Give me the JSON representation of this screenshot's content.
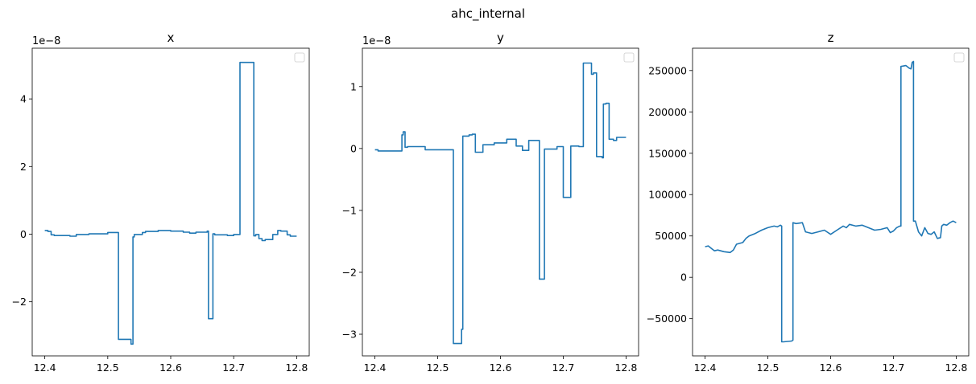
{
  "figure": {
    "suptitle": "ahc_internal"
  },
  "chart_data": [
    {
      "type": "line",
      "title": "x",
      "xlabel": "",
      "ylabel": "",
      "offset_text": "1e−8",
      "xlim": [
        12.38,
        12.82
      ],
      "ylim": [
        -3.6e-08,
        5.5e-08
      ],
      "xticks": [
        12.4,
        12.5,
        12.6,
        12.7,
        12.8
      ],
      "xticklabels": [
        "12.4",
        "12.5",
        "12.6",
        "12.7",
        "12.8"
      ],
      "yticks": [
        -2e-08,
        0,
        2e-08,
        4e-08
      ],
      "yticklabels": [
        "−2",
        "0",
        "2",
        "4"
      ],
      "legend": "upper right, empty",
      "color": "#1f77b4",
      "series": [
        {
          "x": [
            12.4,
            12.405,
            12.405,
            12.41,
            12.41,
            12.415,
            12.415,
            12.44,
            12.44,
            12.45,
            12.45,
            12.47,
            12.47,
            12.5,
            12.5,
            12.517,
            12.517,
            12.523,
            12.523,
            12.537,
            12.537,
            12.54,
            12.54,
            12.542,
            12.542,
            12.555,
            12.555,
            12.56,
            12.56,
            12.58,
            12.58,
            12.6,
            12.6,
            12.62,
            12.62,
            12.63,
            12.63,
            12.64,
            12.64,
            12.658,
            12.658,
            12.66,
            12.66,
            12.667,
            12.667,
            12.67,
            12.67,
            12.69,
            12.69,
            12.7,
            12.7,
            12.71,
            12.71,
            12.712,
            12.712,
            12.732,
            12.732,
            12.735,
            12.735,
            12.74,
            12.74,
            12.745,
            12.745,
            12.75,
            12.75,
            12.762,
            12.762,
            12.77,
            12.77,
            12.775,
            12.775,
            12.785,
            12.785,
            12.79,
            12.79,
            12.8
          ],
          "y": [
            1.1e-09,
            1.1e-09,
            8e-10,
            8e-10,
            -2e-10,
            -2e-10,
            -4e-10,
            -4e-10,
            -6e-10,
            -6e-10,
            -1e-10,
            -1e-10,
            1e-10,
            1e-10,
            5e-10,
            5e-10,
            -3.11e-08,
            -3.11e-08,
            -3.11e-08,
            -3.11e-08,
            -3.25e-08,
            -3.25e-08,
            -8e-10,
            -8e-10,
            -1e-10,
            -1e-10,
            5e-10,
            5e-10,
            8e-10,
            8e-10,
            1.1e-09,
            1.1e-09,
            9e-10,
            9e-10,
            6e-10,
            6e-10,
            3e-10,
            3e-10,
            6e-10,
            6e-10,
            9e-10,
            9e-10,
            -2.5e-08,
            -2.5e-08,
            1e-10,
            1e-10,
            -2e-10,
            -2e-10,
            -4e-10,
            -4e-10,
            -1e-10,
            -1e-10,
            5.08e-08,
            5.08e-08,
            5.08e-08,
            5.08e-08,
            -5e-10,
            -5e-10,
            -1e-10,
            -1e-10,
            -1.3e-09,
            -1.3e-09,
            -1.9e-09,
            -1.9e-09,
            -1.6e-09,
            -1.6e-09,
            -1e-10,
            -1e-10,
            1.1e-09,
            1.1e-09,
            9e-10,
            9e-10,
            -2e-10,
            -2e-10,
            -6e-10,
            -6e-10
          ]
        }
      ]
    },
    {
      "type": "line",
      "title": "y",
      "xlabel": "",
      "ylabel": "",
      "offset_text": "1e−8",
      "xlim": [
        12.38,
        12.82
      ],
      "ylim": [
        -3.35e-08,
        1.62e-08
      ],
      "xticks": [
        12.4,
        12.5,
        12.6,
        12.7,
        12.8
      ],
      "xticklabels": [
        "12.4",
        "12.5",
        "12.6",
        "12.7",
        "12.8"
      ],
      "yticks": [
        -3e-08,
        -2e-08,
        -1e-08,
        0,
        1e-08
      ],
      "yticklabels": [
        "−3",
        "−2",
        "−1",
        "0",
        "1"
      ],
      "legend": "upper right, empty",
      "color": "#1f77b4",
      "series": [
        {
          "x": [
            12.4,
            12.405,
            12.405,
            12.443,
            12.443,
            12.445,
            12.445,
            12.448,
            12.448,
            12.452,
            12.452,
            12.48,
            12.48,
            12.5,
            12.5,
            12.525,
            12.525,
            12.53,
            12.53,
            12.535,
            12.535,
            12.538,
            12.538,
            12.54,
            12.54,
            12.55,
            12.55,
            12.555,
            12.555,
            12.56,
            12.56,
            12.572,
            12.572,
            12.59,
            12.59,
            12.61,
            12.61,
            12.625,
            12.625,
            12.635,
            12.635,
            12.645,
            12.645,
            12.662,
            12.662,
            12.667,
            12.667,
            12.67,
            12.67,
            12.68,
            12.68,
            12.69,
            12.69,
            12.7,
            12.7,
            12.71,
            12.71,
            12.712,
            12.712,
            12.725,
            12.725,
            12.732,
            12.732,
            12.745,
            12.745,
            12.748,
            12.748,
            12.75,
            12.75,
            12.753,
            12.753,
            12.762,
            12.762,
            12.764,
            12.764,
            12.768,
            12.768,
            12.773,
            12.773,
            12.78,
            12.78,
            12.785,
            12.785,
            12.795,
            12.795,
            12.8
          ],
          "y": [
            -2e-10,
            -2e-10,
            -4e-10,
            -4e-10,
            2.2e-09,
            2.2e-09,
            2.7e-09,
            2.7e-09,
            2e-10,
            2e-10,
            3e-10,
            3e-10,
            -2e-10,
            -2e-10,
            -2e-10,
            -2e-10,
            -3.15e-08,
            -3.15e-08,
            -3.15e-08,
            -3.15e-08,
            -3.15e-08,
            -3.15e-08,
            -2.92e-08,
            -2.92e-08,
            2e-09,
            2e-09,
            2.2e-09,
            2.2e-09,
            2.3e-09,
            2.3e-09,
            -6e-10,
            -6e-10,
            6e-10,
            6e-10,
            9e-10,
            9e-10,
            1.5e-09,
            1.5e-09,
            4e-10,
            4e-10,
            -3e-10,
            -3e-10,
            1.3e-09,
            1.3e-09,
            -2.11e-08,
            -2.11e-08,
            -2.11e-08,
            -2.11e-08,
            -1e-10,
            -1e-10,
            -1e-10,
            -1e-10,
            3e-10,
            3e-10,
            -7.9e-09,
            -7.9e-09,
            -7.9e-09,
            -7.9e-09,
            4e-10,
            4e-10,
            3e-10,
            3e-10,
            1.38e-08,
            1.38e-08,
            1.2e-08,
            1.2e-08,
            1.22e-08,
            1.22e-08,
            1.22e-08,
            1.22e-08,
            -1.3e-09,
            -1.3e-09,
            -1.5e-09,
            -1.5e-09,
            7.2e-09,
            7.2e-09,
            7.3e-09,
            7.3e-09,
            1.5e-09,
            1.5e-09,
            1.3e-09,
            1.3e-09,
            1.8e-09,
            1.8e-09,
            1.8e-09,
            1.8e-09
          ]
        }
      ]
    },
    {
      "type": "line",
      "title": "z",
      "xlabel": "",
      "ylabel": "",
      "offset_text": "",
      "xlim": [
        12.38,
        12.82
      ],
      "ylim": [
        -95000,
        277000
      ],
      "xticks": [
        12.4,
        12.5,
        12.6,
        12.7,
        12.8
      ],
      "xticklabels": [
        "12.4",
        "12.5",
        "12.6",
        "12.7",
        "12.8"
      ],
      "yticks": [
        -50000,
        0,
        50000,
        100000,
        150000,
        200000,
        250000
      ],
      "yticklabels": [
        "−50000",
        "0",
        "50000",
        "100000",
        "150000",
        "200000",
        "250000"
      ],
      "legend": "upper right, empty",
      "color": "#1f77b4",
      "series": [
        {
          "x": [
            12.4,
            12.405,
            12.41,
            12.415,
            12.42,
            12.43,
            12.44,
            12.445,
            12.45,
            12.46,
            12.465,
            12.47,
            12.48,
            12.49,
            12.5,
            12.51,
            12.515,
            12.52,
            12.522,
            12.522,
            12.525,
            12.538,
            12.54,
            12.54,
            12.545,
            12.555,
            12.56,
            12.57,
            12.58,
            12.59,
            12.6,
            12.61,
            12.62,
            12.625,
            12.63,
            12.64,
            12.65,
            12.66,
            12.67,
            12.68,
            12.69,
            12.695,
            12.7,
            12.705,
            12.71,
            12.712,
            12.712,
            12.72,
            12.725,
            12.728,
            12.73,
            12.732,
            12.732,
            12.735,
            12.74,
            12.745,
            12.75,
            12.755,
            12.76,
            12.765,
            12.77,
            12.775,
            12.777,
            12.78,
            12.785,
            12.79,
            12.795,
            12.8
          ],
          "y": [
            37000,
            38000,
            35000,
            32000,
            33000,
            31000,
            30000,
            33000,
            40000,
            42000,
            47000,
            50000,
            53000,
            57000,
            60000,
            62000,
            61000,
            63000,
            62000,
            -78000,
            -78000,
            -77000,
            -76000,
            66000,
            65000,
            66000,
            55000,
            53000,
            55000,
            57000,
            52000,
            57000,
            62000,
            60000,
            64000,
            62000,
            63000,
            60000,
            57000,
            58000,
            60000,
            54000,
            56000,
            60000,
            62000,
            62000,
            255000,
            256000,
            253000,
            252000,
            260000,
            261000,
            68000,
            68000,
            55000,
            50000,
            60000,
            53000,
            52000,
            55000,
            47000,
            48000,
            62000,
            64000,
            63000,
            66000,
            68000,
            66000
          ]
        }
      ]
    }
  ]
}
